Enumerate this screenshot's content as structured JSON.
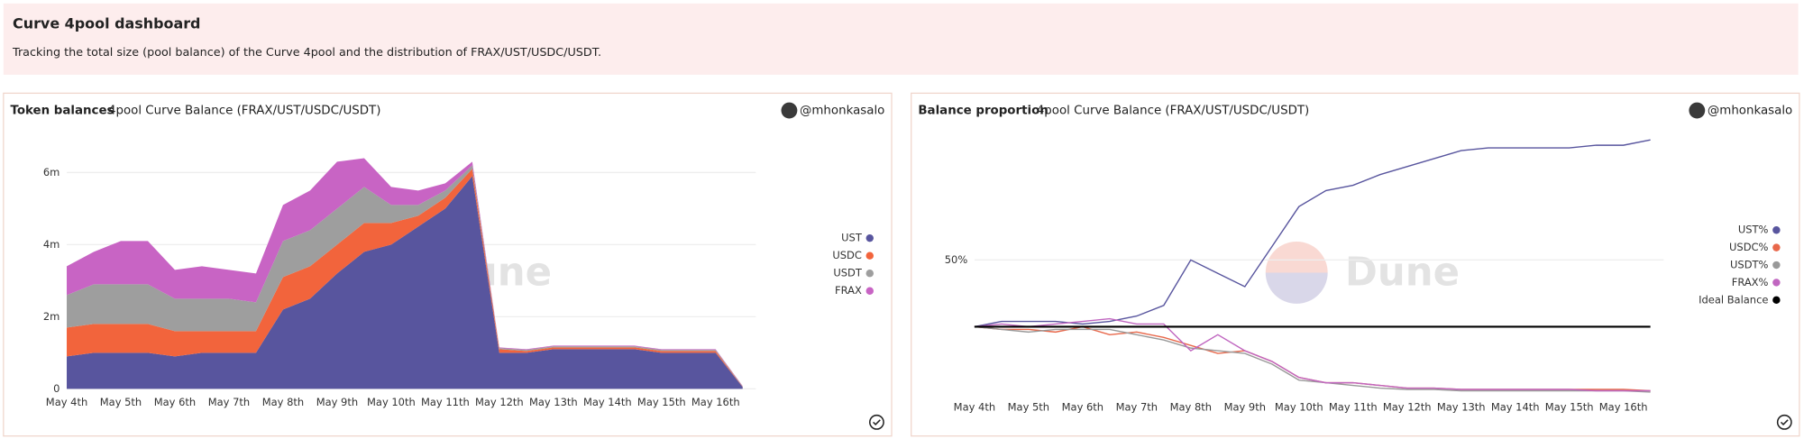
{
  "header": {
    "title": "Curve 4pool dashboard",
    "subtitle": "Tracking the total size (pool balance) of the Curve 4pool and the distribution of FRAX/UST/USDC/USDT."
  },
  "chart_data": [
    {
      "type": "area",
      "stacked": true,
      "title": "Token balances",
      "subtitle": "4pool Curve Balance (FRAX/UST/USDC/USDT)",
      "author": "@mhonkasalo",
      "watermark": "Dune",
      "categories": [
        "May 4th",
        null,
        "May 5th",
        null,
        "May 6th",
        null,
        "May 7th",
        null,
        "May 8th",
        null,
        "May 9th",
        null,
        "May 10th",
        null,
        "May 11th",
        null,
        "May 12th",
        null,
        "May 13th",
        null,
        "May 14th",
        null,
        "May 15th",
        null,
        "May 16th",
        null
      ],
      "series": [
        {
          "name": "UST",
          "color": "#58559e",
          "values": [
            0.9,
            1.0,
            1.0,
            1.0,
            0.9,
            1.0,
            1.0,
            1.0,
            2.2,
            2.5,
            3.2,
            3.8,
            4.0,
            4.5,
            5.0,
            5.9,
            1.0,
            1.0,
            1.1,
            1.1,
            1.1,
            1.1,
            1.0,
            1.0,
            1.0,
            0.05
          ]
        },
        {
          "name": "USDC",
          "color": "#f2643c",
          "values": [
            0.8,
            0.8,
            0.8,
            0.8,
            0.7,
            0.6,
            0.6,
            0.6,
            0.9,
            0.9,
            0.8,
            0.8,
            0.6,
            0.3,
            0.3,
            0.2,
            0.1,
            0.05,
            0.05,
            0.05,
            0.05,
            0.05,
            0.05,
            0.05,
            0.05,
            0.01
          ]
        },
        {
          "name": "USDT",
          "color": "#9e9e9e",
          "values": [
            0.9,
            1.1,
            1.1,
            1.1,
            0.9,
            0.9,
            0.9,
            0.8,
            1.0,
            1.0,
            1.0,
            1.0,
            0.5,
            0.3,
            0.2,
            0.1,
            0.03,
            0.03,
            0.03,
            0.03,
            0.03,
            0.03,
            0.03,
            0.03,
            0.03,
            0.01
          ]
        },
        {
          "name": "FRAX",
          "color": "#c864c4",
          "values": [
            0.8,
            0.9,
            1.2,
            1.2,
            0.8,
            0.9,
            0.8,
            0.8,
            1.0,
            1.1,
            1.3,
            0.8,
            0.5,
            0.4,
            0.2,
            0.1,
            0.02,
            0.02,
            0.02,
            0.02,
            0.02,
            0.02,
            0.02,
            0.02,
            0.02,
            0.01
          ]
        }
      ],
      "ylim": [
        0,
        7
      ],
      "yticks": [
        0,
        {
          "value": 2,
          "label": "2m"
        },
        {
          "value": 4,
          "label": "4m"
        },
        {
          "value": 6,
          "label": "6m"
        }
      ],
      "grid": true,
      "legend": "right"
    },
    {
      "type": "line",
      "title": "Balance proportion",
      "subtitle": "4pool Curve Balance (FRAX/UST/USDC/USDT)",
      "author": "@mhonkasalo",
      "watermark": "Dune",
      "categories": [
        "May 4th",
        null,
        "May 5th",
        null,
        "May 6th",
        null,
        "May 7th",
        null,
        "May 8th",
        null,
        "May 9th",
        null,
        "May 10th",
        null,
        "May 11th",
        null,
        "May 12th",
        null,
        "May 13th",
        null,
        "May 14th",
        null,
        "May 15th",
        null,
        "May 16th",
        null
      ],
      "series": [
        {
          "name": "UST%",
          "color": "#58559e",
          "values": [
            25,
            27,
            27,
            27,
            26,
            27,
            29,
            33,
            50,
            45,
            40,
            55,
            70,
            76,
            78,
            82,
            85,
            88,
            91,
            92,
            92,
            92,
            92,
            93,
            93,
            95
          ]
        },
        {
          "name": "USDC%",
          "color": "#e8674a",
          "values": [
            25,
            24,
            24,
            23,
            25,
            22,
            23,
            21,
            18,
            15,
            16,
            12,
            6,
            4,
            4,
            3,
            2,
            2,
            1.5,
            1.5,
            1.5,
            1.5,
            1.5,
            1.5,
            1.5,
            1
          ]
        },
        {
          "name": "USDT%",
          "color": "#999999",
          "values": [
            25,
            24,
            23,
            24,
            24,
            24,
            22,
            20,
            17,
            16,
            15,
            11,
            5,
            4,
            3,
            2,
            1.5,
            1.5,
            1,
            1,
            1,
            1,
            1,
            1,
            1,
            0.5
          ]
        },
        {
          "name": "FRAX%",
          "color": "#c066c0",
          "values": [
            25,
            26,
            25,
            26,
            27,
            28,
            26,
            26,
            16,
            22,
            16,
            12,
            6,
            4,
            4,
            3,
            2,
            2,
            1.5,
            1.5,
            1.5,
            1.5,
            1.5,
            1,
            1,
            1
          ]
        },
        {
          "name": "Ideal Balance",
          "color": "#000000",
          "values": [
            25,
            25,
            25,
            25,
            25,
            25,
            25,
            25,
            25,
            25,
            25,
            25,
            25,
            25,
            25,
            25,
            25,
            25,
            25,
            25,
            25,
            25,
            25,
            25,
            25,
            25
          ]
        }
      ],
      "ylim": [
        0,
        100
      ],
      "yticks": [
        {
          "value": 50,
          "label": "50%"
        }
      ],
      "grid": true,
      "legend": "right"
    }
  ]
}
